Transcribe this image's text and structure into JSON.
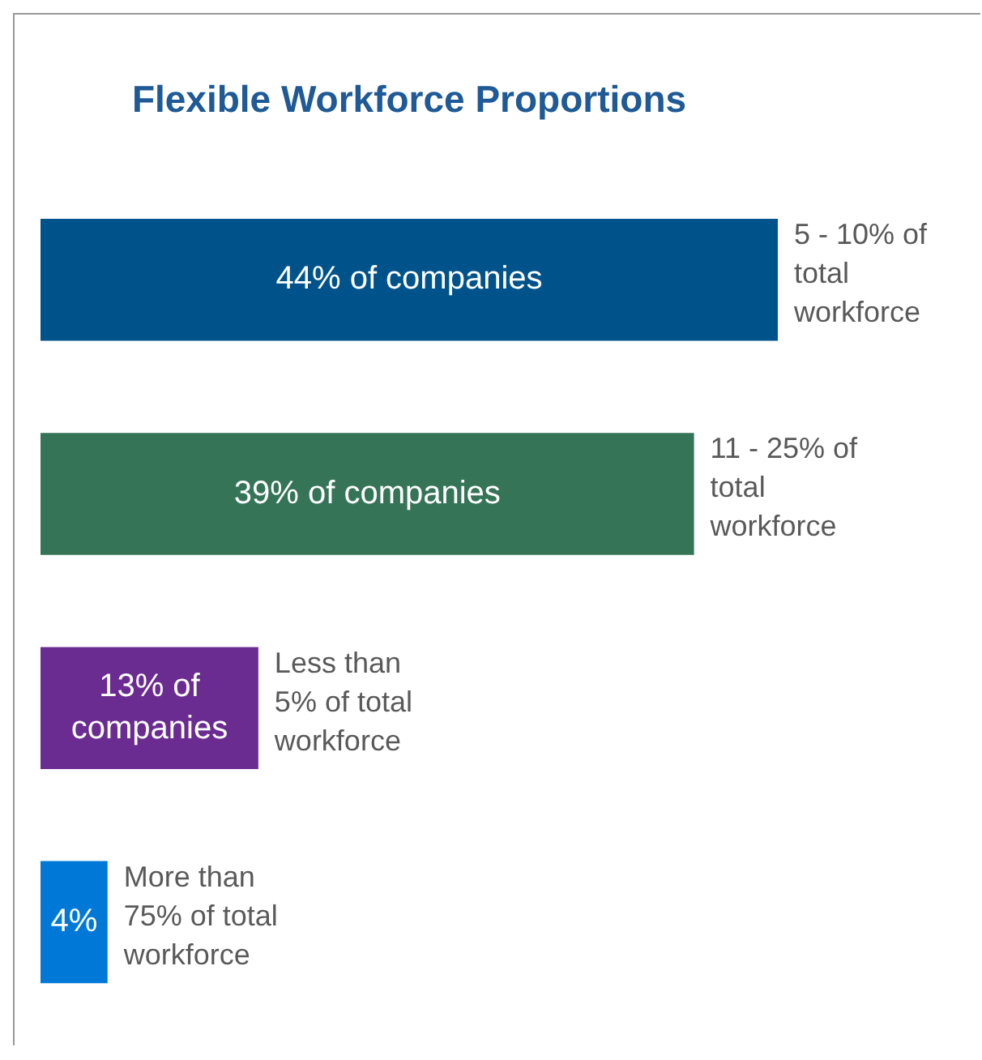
{
  "chart_data": {
    "type": "bar",
    "orientation": "horizontal",
    "title": "Flexible Workforce Proportions",
    "categories": [
      "5 - 10% of total workforce",
      "11 - 25% of total workforce",
      "Less than 5% of total workforce",
      "More than 75% of total workforce"
    ],
    "values": [
      44,
      39,
      13,
      4
    ],
    "colors": [
      "#00538a",
      "#357457",
      "#6a2c91",
      "#0078d7"
    ],
    "value_labels": [
      "44% of companies",
      "39% of companies",
      "13% of companies",
      "4%"
    ],
    "legend": false
  }
}
